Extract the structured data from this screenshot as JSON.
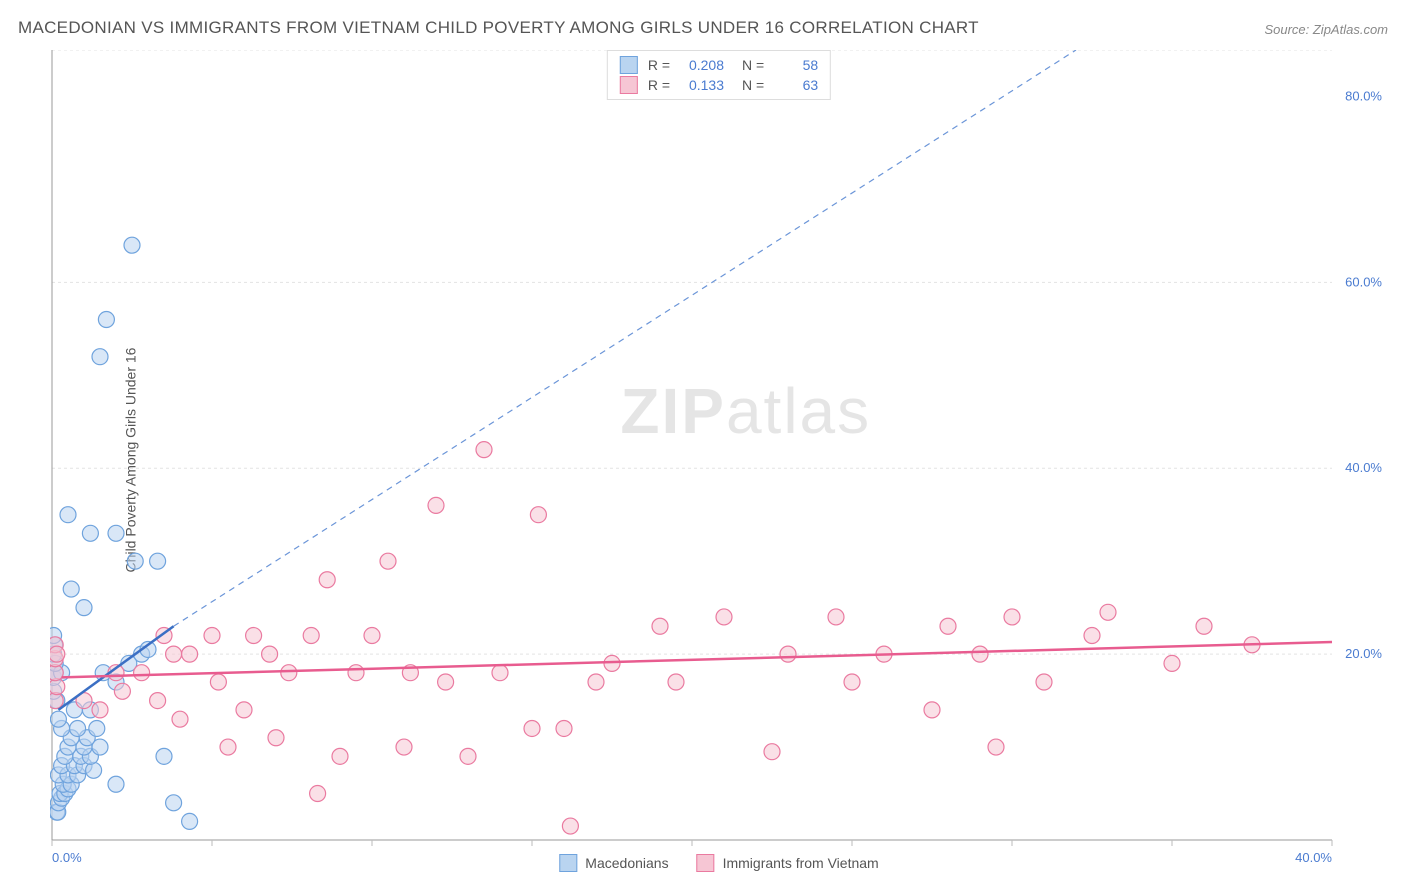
{
  "title": "MACEDONIAN VS IMMIGRANTS FROM VIETNAM CHILD POVERTY AMONG GIRLS UNDER 16 CORRELATION CHART",
  "source": "Source: ZipAtlas.com",
  "ylabel": "Child Poverty Among Girls Under 16",
  "watermark": "ZIPatlas",
  "chart": {
    "type": "scatter",
    "background_color": "#ffffff",
    "grid_color": "#e3e3e3",
    "axis_color": "#999999",
    "tick_color": "#bbbbbb",
    "xlim": [
      0,
      40
    ],
    "ylim": [
      0,
      85
    ],
    "x_tick_step": 5,
    "y_grid_lines": [
      20,
      40,
      60,
      85
    ],
    "x_labels": [
      {
        "v": 0,
        "t": "0.0%"
      },
      {
        "v": 40,
        "t": "40.0%"
      }
    ],
    "y_labels": [
      {
        "v": 20,
        "t": "20.0%"
      },
      {
        "v": 40,
        "t": "40.0%"
      },
      {
        "v": 60,
        "t": "60.0%"
      },
      {
        "v": 80,
        "t": "80.0%"
      }
    ],
    "series": [
      {
        "name": "Macedonians",
        "color_fill": "#b9d4f0",
        "color_stroke": "#6fa3dd",
        "fill_opacity": 0.55,
        "marker_radius": 8,
        "R": "0.208",
        "N": "58",
        "trend_solid": {
          "x1": 0.2,
          "y1": 14,
          "x2": 3.8,
          "y2": 23,
          "color": "#3b6fc4",
          "width": 2.5
        },
        "trend_dash": {
          "x1": 3.8,
          "y1": 23,
          "x2": 32,
          "y2": 85,
          "color": "#6b95d8",
          "width": 1.2,
          "dash": "6,5"
        },
        "points": [
          [
            0.15,
            3
          ],
          [
            0.18,
            3
          ],
          [
            0.2,
            4
          ],
          [
            0.3,
            4.5
          ],
          [
            0.25,
            5
          ],
          [
            0.4,
            5
          ],
          [
            0.5,
            5.5
          ],
          [
            0.35,
            6
          ],
          [
            0.6,
            6
          ],
          [
            0.2,
            7
          ],
          [
            0.5,
            7
          ],
          [
            0.8,
            7
          ],
          [
            0.3,
            8
          ],
          [
            0.7,
            8
          ],
          [
            1.0,
            8
          ],
          [
            1.3,
            7.5
          ],
          [
            0.4,
            9
          ],
          [
            0.9,
            9
          ],
          [
            1.2,
            9
          ],
          [
            0.5,
            10
          ],
          [
            1.0,
            10
          ],
          [
            1.5,
            10
          ],
          [
            0.6,
            11
          ],
          [
            1.1,
            11
          ],
          [
            0.3,
            12
          ],
          [
            0.8,
            12
          ],
          [
            1.4,
            12
          ],
          [
            0.2,
            13
          ],
          [
            0.7,
            14
          ],
          [
            1.2,
            14
          ],
          [
            0.15,
            15
          ],
          [
            0.05,
            16
          ],
          [
            0.05,
            17.5
          ],
          [
            0.1,
            18
          ],
          [
            0.3,
            18
          ],
          [
            0.1,
            19
          ],
          [
            0.05,
            20
          ],
          [
            0.08,
            21
          ],
          [
            0.05,
            22
          ],
          [
            1.6,
            18
          ],
          [
            2.0,
            17
          ],
          [
            2.4,
            19
          ],
          [
            2.0,
            6
          ],
          [
            2.8,
            20
          ],
          [
            3.0,
            20.5
          ],
          [
            3.5,
            9
          ],
          [
            4.3,
            2
          ],
          [
            1.0,
            25
          ],
          [
            0.6,
            27
          ],
          [
            2.6,
            30
          ],
          [
            3.3,
            30
          ],
          [
            1.2,
            33
          ],
          [
            2.0,
            33
          ],
          [
            0.5,
            35
          ],
          [
            1.5,
            52
          ],
          [
            1.7,
            56
          ],
          [
            2.5,
            64
          ],
          [
            3.8,
            4
          ]
        ]
      },
      {
        "name": "Immigrants from Vietnam",
        "color_fill": "#f6c6d4",
        "color_stroke": "#ea7aa0",
        "fill_opacity": 0.55,
        "marker_radius": 8,
        "R": "0.133",
        "N": "63",
        "trend_solid": {
          "x1": 0.3,
          "y1": 17.5,
          "x2": 40,
          "y2": 21.3,
          "color": "#e85c8f",
          "width": 2.5
        },
        "points": [
          [
            0.1,
            15
          ],
          [
            0.15,
            16.5
          ],
          [
            0.1,
            18
          ],
          [
            0.1,
            19.5
          ],
          [
            0.1,
            21
          ],
          [
            0.15,
            20
          ],
          [
            1.0,
            15
          ],
          [
            1.5,
            14
          ],
          [
            2.2,
            16
          ],
          [
            2.0,
            18
          ],
          [
            2.8,
            18
          ],
          [
            3.3,
            15
          ],
          [
            3.5,
            22
          ],
          [
            3.8,
            20
          ],
          [
            4.3,
            20
          ],
          [
            4.0,
            13
          ],
          [
            5.2,
            17
          ],
          [
            5.0,
            22
          ],
          [
            5.5,
            10
          ],
          [
            6.0,
            14
          ],
          [
            6.3,
            22
          ],
          [
            6.8,
            20
          ],
          [
            7.0,
            11
          ],
          [
            7.4,
            18
          ],
          [
            8.1,
            22
          ],
          [
            8.3,
            5
          ],
          [
            8.6,
            28
          ],
          [
            9.0,
            9
          ],
          [
            9.5,
            18
          ],
          [
            10.0,
            22
          ],
          [
            10.5,
            30
          ],
          [
            11.0,
            10
          ],
          [
            11.2,
            18
          ],
          [
            12.0,
            36
          ],
          [
            12.3,
            17
          ],
          [
            13.0,
            9
          ],
          [
            13.5,
            42
          ],
          [
            14.0,
            18
          ],
          [
            15.2,
            35
          ],
          [
            15.0,
            12
          ],
          [
            16.0,
            12
          ],
          [
            16.2,
            1.5
          ],
          [
            17.0,
            17
          ],
          [
            17.5,
            19
          ],
          [
            19.0,
            23
          ],
          [
            19.5,
            17
          ],
          [
            21.0,
            24
          ],
          [
            22.5,
            9.5
          ],
          [
            23.0,
            20
          ],
          [
            24.5,
            24
          ],
          [
            25.0,
            17
          ],
          [
            26.0,
            20
          ],
          [
            27.5,
            14
          ],
          [
            28.0,
            23
          ],
          [
            29.0,
            20
          ],
          [
            29.5,
            10
          ],
          [
            30.0,
            24
          ],
          [
            31.0,
            17
          ],
          [
            32.5,
            22
          ],
          [
            33.0,
            24.5
          ],
          [
            35.0,
            19
          ],
          [
            36.0,
            23
          ],
          [
            37.5,
            21
          ]
        ]
      }
    ]
  },
  "legend": {
    "series1": "Macedonians",
    "series2": "Immigrants from Vietnam"
  }
}
